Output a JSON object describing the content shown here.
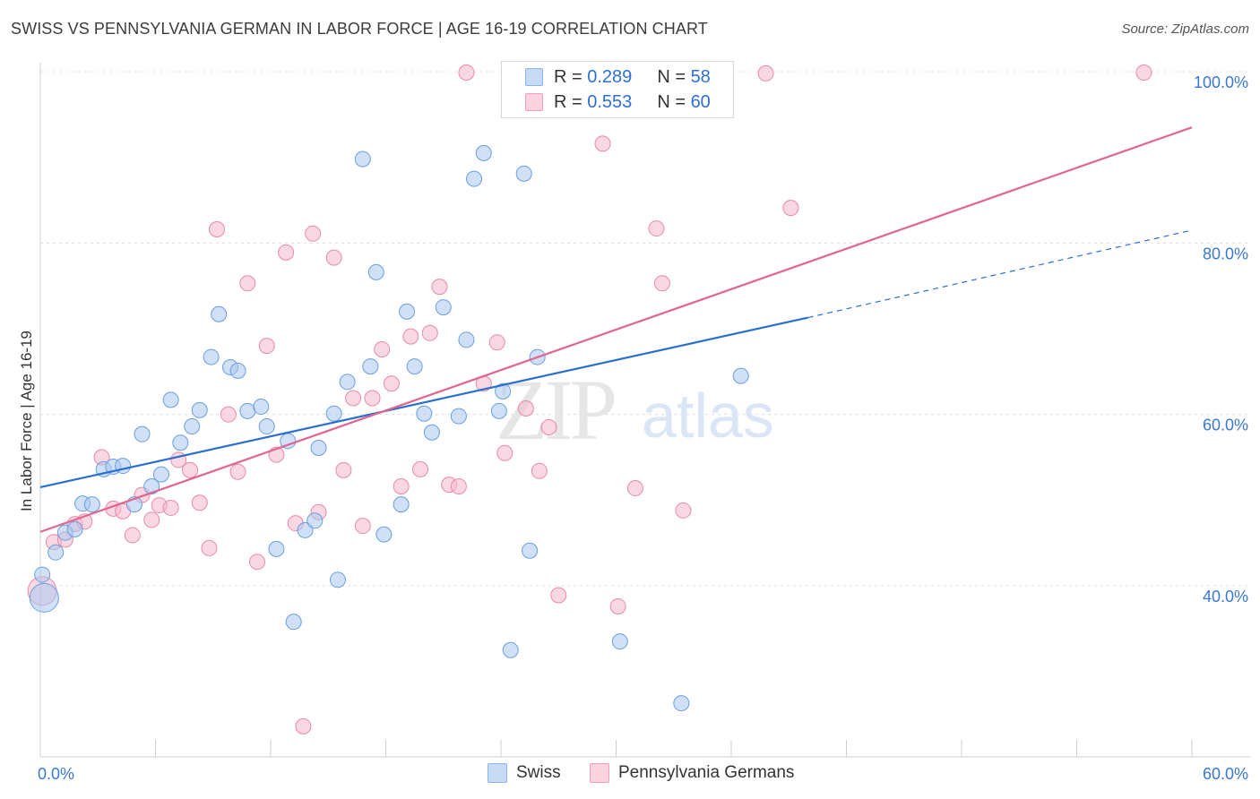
{
  "title": "SWISS VS PENNSYLVANIA GERMAN IN LABOR FORCE | AGE 16-19 CORRELATION CHART",
  "source": "Source: ZipAtlas.com",
  "watermark": {
    "zip": "ZIP",
    "atlas": "atlas"
  },
  "legend": {
    "r_label": "R =",
    "n_label": "N =",
    "entries": [
      {
        "r": "0.289",
        "n": "58",
        "color": "#a9c8f0"
      },
      {
        "r": "0.553",
        "n": "60",
        "color": "#f6b8cc"
      }
    ]
  },
  "chart_data": {
    "type": "scatter",
    "title": "SWISS VS PENNSYLVANIA GERMAN IN LABOR FORCE | AGE 16-19 CORRELATION CHART",
    "xlabel": "",
    "ylabel": "In Labor Force | Age 16-19",
    "xlim": [
      0,
      60
    ],
    "ylim": [
      22,
      102
    ],
    "x_tick_labels": [
      "0.0%",
      "60.0%"
    ],
    "y_ticks": [
      40,
      60,
      80,
      100
    ],
    "y_tick_labels": [
      "40.0%",
      "60.0%",
      "80.0%",
      "100.0%"
    ],
    "grid": true,
    "legend_position": "top-center",
    "series": [
      {
        "name": "Swiss",
        "color": "#a9c8f0",
        "stroke": "#6a9ee0",
        "trend_color": "#2a6fd0",
        "trend": {
          "x0": 0,
          "y0": 51.5,
          "x1": 40,
          "y1": 71.3,
          "dash_x1": 60,
          "dash_y1": 81.5
        },
        "points": [
          [
            0.2,
            38.6
          ],
          [
            0.8,
            43.9
          ],
          [
            1.3,
            46.2
          ],
          [
            1.8,
            46.6
          ],
          [
            2.2,
            49.6
          ],
          [
            2.7,
            49.5
          ],
          [
            3.3,
            53.6
          ],
          [
            3.8,
            53.9
          ],
          [
            4.3,
            54.0
          ],
          [
            4.9,
            49.5
          ],
          [
            5.3,
            57.7
          ],
          [
            5.8,
            51.6
          ],
          [
            6.3,
            53.0
          ],
          [
            6.8,
            61.7
          ],
          [
            7.3,
            56.7
          ],
          [
            7.9,
            58.6
          ],
          [
            8.3,
            60.5
          ],
          [
            8.9,
            66.7
          ],
          [
            9.3,
            71.7
          ],
          [
            9.9,
            65.5
          ],
          [
            10.3,
            65.1
          ],
          [
            10.8,
            60.4
          ],
          [
            11.5,
            60.9
          ],
          [
            11.8,
            58.6
          ],
          [
            12.3,
            44.3
          ],
          [
            12.9,
            56.9
          ],
          [
            13.2,
            35.8
          ],
          [
            13.8,
            46.5
          ],
          [
            14.3,
            47.6
          ],
          [
            14.5,
            56.1
          ],
          [
            15.3,
            60.1
          ],
          [
            15.5,
            40.7
          ],
          [
            16.0,
            63.8
          ],
          [
            16.8,
            89.8
          ],
          [
            17.2,
            65.6
          ],
          [
            17.5,
            76.6
          ],
          [
            17.9,
            46.0
          ],
          [
            18.8,
            49.5
          ],
          [
            19.1,
            72.0
          ],
          [
            19.5,
            65.6
          ],
          [
            20.0,
            60.1
          ],
          [
            20.4,
            57.9
          ],
          [
            21.0,
            72.5
          ],
          [
            21.8,
            59.8
          ],
          [
            22.2,
            68.7
          ],
          [
            22.6,
            87.5
          ],
          [
            23.1,
            90.5
          ],
          [
            23.9,
            60.4
          ],
          [
            24.1,
            62.7
          ],
          [
            24.5,
            32.5
          ],
          [
            25.0,
            99.8
          ],
          [
            25.2,
            88.1
          ],
          [
            25.5,
            44.1
          ],
          [
            25.9,
            66.7
          ],
          [
            30.2,
            33.5
          ],
          [
            33.4,
            26.3
          ],
          [
            36.5,
            64.5
          ],
          [
            0.1,
            41.3
          ]
        ]
      },
      {
        "name": "Pennsylvania Germans",
        "color": "#f6b8cc",
        "stroke": "#e88aa8",
        "trend_color": "#e06690",
        "trend": {
          "x0": 0,
          "y0": 46.3,
          "x1": 60,
          "y1": 93.5
        },
        "points": [
          [
            0.1,
            39.4
          ],
          [
            0.7,
            45.1
          ],
          [
            1.3,
            45.4
          ],
          [
            1.8,
            47.2
          ],
          [
            2.3,
            47.5
          ],
          [
            3.2,
            55.0
          ],
          [
            3.8,
            49.0
          ],
          [
            4.3,
            48.7
          ],
          [
            4.8,
            45.9
          ],
          [
            5.3,
            50.6
          ],
          [
            5.8,
            47.7
          ],
          [
            6.2,
            49.4
          ],
          [
            6.8,
            49.1
          ],
          [
            7.2,
            54.7
          ],
          [
            7.8,
            53.5
          ],
          [
            8.3,
            49.7
          ],
          [
            8.8,
            44.4
          ],
          [
            9.2,
            81.6
          ],
          [
            9.8,
            60.0
          ],
          [
            10.3,
            53.3
          ],
          [
            10.8,
            75.3
          ],
          [
            11.3,
            42.8
          ],
          [
            11.8,
            68.0
          ],
          [
            12.3,
            55.3
          ],
          [
            12.8,
            78.9
          ],
          [
            13.3,
            47.3
          ],
          [
            13.7,
            23.6
          ],
          [
            14.2,
            81.1
          ],
          [
            14.5,
            48.6
          ],
          [
            15.3,
            78.3
          ],
          [
            15.8,
            53.5
          ],
          [
            16.3,
            61.9
          ],
          [
            16.8,
            47.0
          ],
          [
            17.3,
            61.9
          ],
          [
            17.8,
            67.6
          ],
          [
            18.3,
            63.6
          ],
          [
            18.8,
            51.6
          ],
          [
            19.3,
            69.1
          ],
          [
            19.8,
            53.6
          ],
          [
            20.3,
            69.5
          ],
          [
            20.8,
            74.9
          ],
          [
            21.3,
            51.8
          ],
          [
            21.8,
            51.6
          ],
          [
            22.2,
            99.9
          ],
          [
            23.1,
            63.6
          ],
          [
            23.8,
            68.4
          ],
          [
            24.2,
            55.5
          ],
          [
            25.3,
            60.7
          ],
          [
            26.0,
            53.4
          ],
          [
            26.5,
            58.5
          ],
          [
            27.0,
            38.9
          ],
          [
            29.3,
            91.6
          ],
          [
            30.1,
            37.6
          ],
          [
            31.0,
            51.4
          ],
          [
            32.1,
            81.7
          ],
          [
            32.4,
            75.3
          ],
          [
            33.5,
            48.8
          ],
          [
            37.8,
            99.8
          ],
          [
            39.1,
            84.1
          ],
          [
            57.5,
            99.9
          ]
        ]
      }
    ]
  }
}
